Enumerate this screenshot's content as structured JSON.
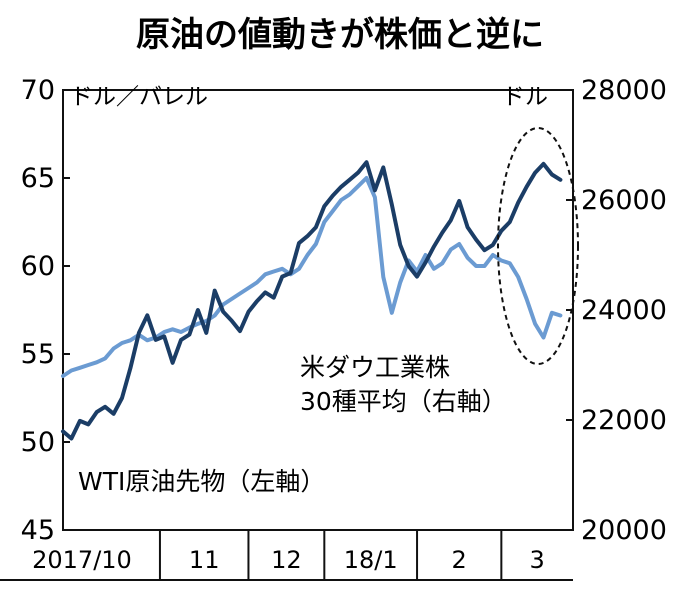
{
  "chart_data": {
    "type": "line",
    "title": "原油の値動きが株価と逆に",
    "left_axis": {
      "unit": "ドル／バレル",
      "ylim": [
        45,
        70
      ],
      "ticks": [
        45,
        50,
        55,
        60,
        65,
        70
      ],
      "tick_labels": [
        "45",
        "50",
        "55",
        "60",
        "65",
        "70"
      ]
    },
    "right_axis": {
      "unit": "ドル",
      "ylim": [
        20000,
        28000
      ],
      "ticks": [
        20000,
        22000,
        24000,
        26000,
        28000
      ],
      "tick_labels": [
        "20000",
        "22000",
        "24000",
        "26000",
        "28000"
      ]
    },
    "x_labels": [
      "2017/10",
      "11",
      "12",
      "18/1",
      "2",
      "3"
    ],
    "x_range": [
      0,
      121
    ],
    "month_boundaries": [
      0,
      23,
      44,
      62,
      84,
      104,
      121
    ],
    "highlight": "dashed ellipse around late-March divergence",
    "series": [
      {
        "name": "WTI原油先物（左軸）",
        "axis": "left",
        "color": "#1b3d66",
        "x": [
          0,
          2,
          4,
          6,
          8,
          10,
          12,
          14,
          16,
          18,
          20,
          22,
          24,
          26,
          28,
          30,
          32,
          34,
          36,
          38,
          40,
          42,
          44,
          46,
          48,
          50,
          52,
          54,
          56,
          58,
          60,
          62,
          64,
          66,
          68,
          70,
          72,
          74,
          76,
          78,
          80,
          82,
          84,
          86,
          88,
          90,
          92,
          94,
          96,
          98,
          100,
          102,
          104,
          106,
          108,
          110,
          112,
          114,
          116,
          118
        ],
        "values": [
          50.6,
          50.2,
          51.2,
          51.0,
          51.7,
          52.0,
          51.6,
          52.5,
          54.2,
          56.2,
          57.2,
          55.8,
          56.0,
          54.5,
          55.8,
          56.1,
          57.5,
          56.2,
          58.6,
          57.4,
          56.9,
          56.3,
          57.4,
          58.0,
          58.5,
          58.2,
          59.4,
          59.6,
          61.3,
          61.7,
          62.2,
          63.4,
          64.0,
          64.5,
          64.9,
          65.3,
          65.9,
          64.3,
          65.6,
          63.5,
          61.2,
          60.0,
          59.4,
          60.2,
          61.1,
          61.9,
          62.6,
          63.7,
          62.2,
          61.5,
          60.9,
          61.2,
          62.0,
          62.5,
          63.6,
          64.5,
          65.3,
          65.8,
          65.2,
          64.9
        ],
        "label": "WTI原油先物（左軸）"
      },
      {
        "name": "米ダウ工業株30種平均（右軸）",
        "axis": "right",
        "color": "#6b9bd2",
        "x": [
          0,
          2,
          4,
          6,
          8,
          10,
          12,
          14,
          16,
          18,
          20,
          22,
          24,
          26,
          28,
          30,
          32,
          34,
          36,
          38,
          40,
          42,
          44,
          46,
          48,
          50,
          52,
          54,
          56,
          58,
          60,
          62,
          64,
          66,
          68,
          70,
          72,
          74,
          76,
          78,
          80,
          82,
          84,
          86,
          88,
          90,
          92,
          94,
          96,
          98,
          100,
          102,
          104,
          106,
          108,
          110,
          112,
          114,
          116,
          118
        ],
        "values": [
          22800,
          22900,
          22950,
          23000,
          23050,
          23120,
          23300,
          23400,
          23450,
          23550,
          23450,
          23500,
          23600,
          23650,
          23600,
          23680,
          23750,
          23800,
          23900,
          24100,
          24200,
          24300,
          24400,
          24500,
          24650,
          24700,
          24750,
          24650,
          24750,
          25000,
          25200,
          25600,
          25800,
          26000,
          26100,
          26250,
          26400,
          26050,
          24600,
          23950,
          24500,
          24900,
          24700,
          25000,
          24750,
          24850,
          25100,
          25200,
          24950,
          24800,
          24800,
          25000,
          24900,
          24850,
          24600,
          24200,
          23750,
          23500,
          23950,
          23900
        ],
        "label": "米ダウ工業株30種平均（右軸）"
      }
    ],
    "annotations": {
      "dow_line1": "米ダウ工業株",
      "dow_line2": "30種平均（右軸）",
      "wti": "WTI原油先物（左軸）"
    }
  },
  "colors": {
    "wti": "#1b3d66",
    "dow": "#6b9bd2",
    "axis": "#111111",
    "background": "#ffffff"
  }
}
